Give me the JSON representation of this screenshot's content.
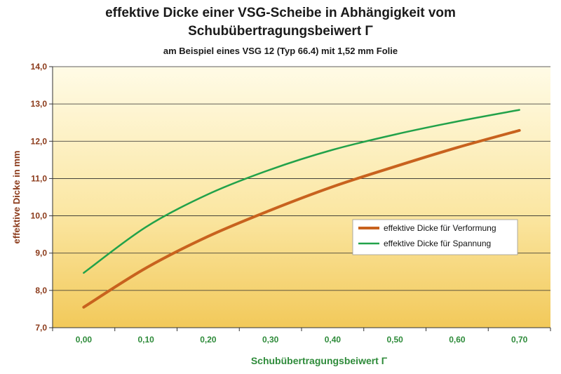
{
  "chart_data": {
    "type": "line",
    "title": "effektive Dicke einer VSG-Scheibe in Abhängigkeit vom",
    "title_line2": "Schubübertragungsbeiwert Γ",
    "subtitle": "am Beispiel eines VSG 12 (Typ 66.4) mit 1,52 mm Folie",
    "xlabel": "Schubübertragungsbeiwert Γ",
    "ylabel": "effektive Dicke in mm",
    "x": [
      0.0,
      0.1,
      0.2,
      0.3,
      0.4,
      0.5,
      0.6,
      0.7
    ],
    "x_tick_labels": [
      "0,00",
      "0,10",
      "0,20",
      "0,30",
      "0,40",
      "0,50",
      "0,60",
      "0,70"
    ],
    "y_tick_labels": [
      "7,0",
      "8,0",
      "9,0",
      "10,0",
      "11,0",
      "12,0",
      "13,0",
      "14,0"
    ],
    "y_ticks": [
      7,
      8,
      9,
      10,
      11,
      12,
      13,
      14
    ],
    "xlim": [
      -0.05,
      0.75
    ],
    "ylim": [
      7,
      14
    ],
    "grid": true,
    "legend_position": "center-right",
    "series": [
      {
        "name": "effektive Dicke für Verformung",
        "color": "#c8621e",
        "values": [
          7.55,
          8.6,
          9.45,
          10.15,
          10.78,
          11.32,
          11.83,
          12.29
        ]
      },
      {
        "name": "effektive Dicke für Spannung",
        "color": "#22a24a",
        "values": [
          8.47,
          9.7,
          10.58,
          11.24,
          11.77,
          12.18,
          12.53,
          12.84
        ]
      }
    ]
  }
}
